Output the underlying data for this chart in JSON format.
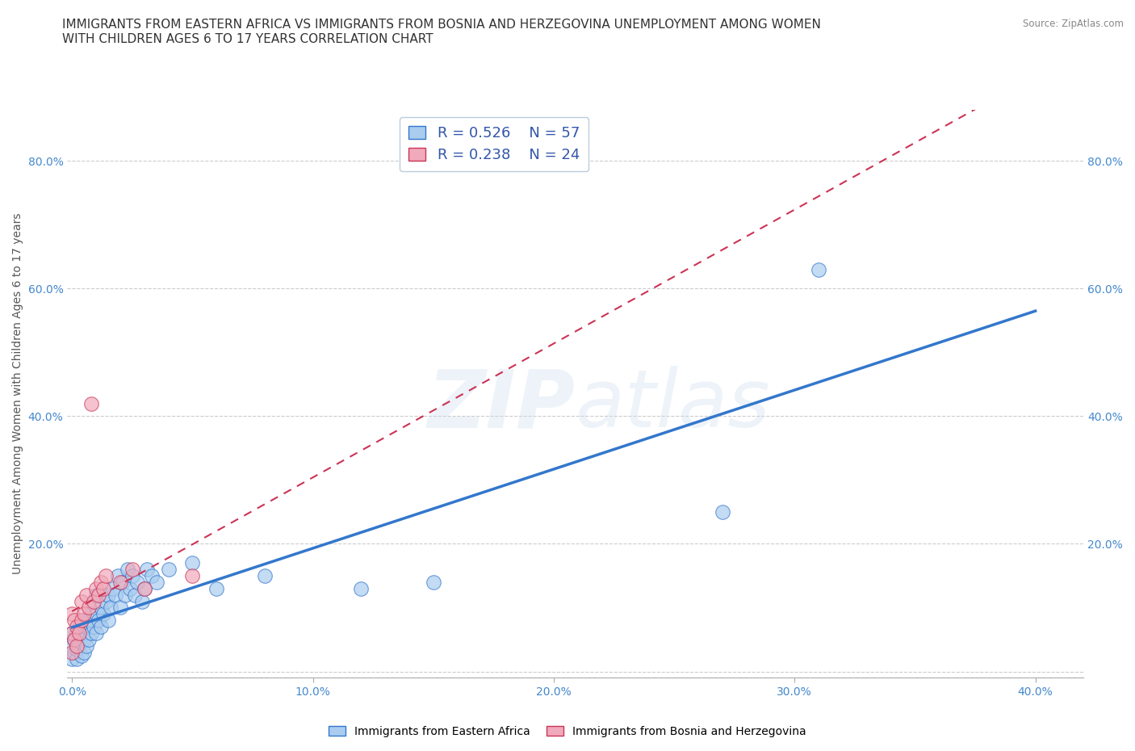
{
  "title": "IMMIGRANTS FROM EASTERN AFRICA VS IMMIGRANTS FROM BOSNIA AND HERZEGOVINA UNEMPLOYMENT AMONG WOMEN\nWITH CHILDREN AGES 6 TO 17 YEARS CORRELATION CHART",
  "source": "Source: ZipAtlas.com",
  "xlabel": "",
  "ylabel": "Unemployment Among Women with Children Ages 6 to 17 years",
  "xlim": [
    -0.002,
    0.42
  ],
  "ylim": [
    -0.01,
    0.88
  ],
  "x_ticks": [
    0.0,
    0.1,
    0.2,
    0.3,
    0.4
  ],
  "x_tick_labels": [
    "0.0%",
    "10.0%",
    "20.0%",
    "30.0%",
    "40.0%"
  ],
  "y_ticks": [
    0.0,
    0.2,
    0.4,
    0.6,
    0.8
  ],
  "y_tick_labels": [
    "",
    "20.0%",
    "40.0%",
    "60.0%",
    "80.0%"
  ],
  "right_y_tick_labels": [
    "",
    "20.0%",
    "40.0%",
    "60.0%",
    "80.0%"
  ],
  "R_eastern_africa": 0.526,
  "N_eastern_africa": 57,
  "R_bosnia": 0.238,
  "N_bosnia": 24,
  "color_eastern_africa": "#aaccee",
  "color_bosnia": "#f0aabb",
  "line_color_eastern_africa": "#3377cc",
  "line_color_bosnia": "#cc3355",
  "watermark": "ZIPatlas",
  "eastern_africa_x": [
    0.0,
    0.0,
    0.0,
    0.001,
    0.001,
    0.002,
    0.002,
    0.002,
    0.003,
    0.003,
    0.004,
    0.004,
    0.005,
    0.005,
    0.005,
    0.006,
    0.006,
    0.007,
    0.007,
    0.008,
    0.008,
    0.009,
    0.01,
    0.01,
    0.01,
    0.011,
    0.012,
    0.012,
    0.013,
    0.014,
    0.015,
    0.015,
    0.016,
    0.017,
    0.018,
    0.019,
    0.02,
    0.021,
    0.022,
    0.023,
    0.024,
    0.025,
    0.026,
    0.027,
    0.029,
    0.03,
    0.031,
    0.033,
    0.035,
    0.04,
    0.05,
    0.06,
    0.08,
    0.12,
    0.15,
    0.27,
    0.31
  ],
  "eastern_africa_y": [
    0.02,
    0.04,
    0.06,
    0.03,
    0.05,
    0.02,
    0.035,
    0.06,
    0.04,
    0.07,
    0.025,
    0.055,
    0.03,
    0.05,
    0.08,
    0.04,
    0.07,
    0.05,
    0.08,
    0.06,
    0.09,
    0.07,
    0.06,
    0.09,
    0.12,
    0.08,
    0.07,
    0.1,
    0.09,
    0.11,
    0.08,
    0.12,
    0.1,
    0.13,
    0.12,
    0.15,
    0.1,
    0.14,
    0.12,
    0.16,
    0.13,
    0.15,
    0.12,
    0.14,
    0.11,
    0.13,
    0.16,
    0.15,
    0.14,
    0.16,
    0.17,
    0.13,
    0.15,
    0.13,
    0.14,
    0.25,
    0.63
  ],
  "bosnia_x": [
    0.0,
    0.0,
    0.0,
    0.001,
    0.001,
    0.002,
    0.002,
    0.003,
    0.004,
    0.004,
    0.005,
    0.006,
    0.007,
    0.008,
    0.009,
    0.01,
    0.011,
    0.012,
    0.013,
    0.014,
    0.02,
    0.025,
    0.03,
    0.05
  ],
  "bosnia_y": [
    0.03,
    0.06,
    0.09,
    0.05,
    0.08,
    0.04,
    0.07,
    0.06,
    0.08,
    0.11,
    0.09,
    0.12,
    0.1,
    0.42,
    0.11,
    0.13,
    0.12,
    0.14,
    0.13,
    0.15,
    0.14,
    0.16,
    0.13,
    0.15
  ],
  "title_fontsize": 11,
  "label_fontsize": 10,
  "tick_fontsize": 10,
  "legend_fontsize": 13,
  "background_color": "#ffffff"
}
